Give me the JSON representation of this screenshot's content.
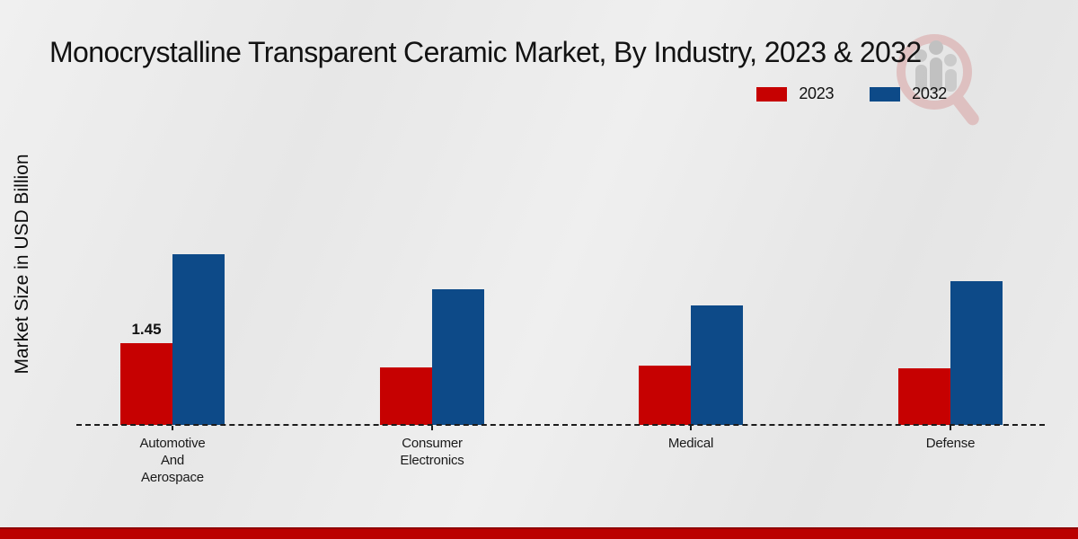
{
  "title": "Monocrystalline Transparent Ceramic Market, By Industry, 2023 & 2032",
  "y_axis_label": "Market Size in USD Billion",
  "legend": {
    "position": "top-right",
    "items": [
      {
        "label": "2023",
        "color": "#c60101"
      },
      {
        "label": "2032",
        "color": "#0d4a88"
      }
    ]
  },
  "colors": {
    "bar_2023": "#c60101",
    "bar_2032": "#0d4a88",
    "footer_bar": "#bb0000",
    "footer_bar_edge": "#8e0000",
    "axis_line": "#1c1c1c",
    "background": "#ebebeb"
  },
  "chart_data": {
    "type": "bar",
    "categories": [
      "Automotive And Aerospace",
      "Consumer Electronics",
      "Medical",
      "Defense"
    ],
    "series": [
      {
        "name": "2023",
        "color": "#c60101",
        "values": [
          1.45,
          1.02,
          1.05,
          1.01
        ]
      },
      {
        "name": "2032",
        "color": "#0d4a88",
        "values": [
          3.02,
          2.41,
          2.11,
          2.55
        ]
      }
    ],
    "bar_value_labels": [
      {
        "series": "2023",
        "category": "Automotive And Aerospace",
        "text": "1.45"
      }
    ],
    "title": "Monocrystalline Transparent Ceramic Market, By Industry, 2023 & 2032",
    "xlabel": "",
    "ylabel": "Market Size in USD Billion",
    "ylim": [
      0,
      3.5
    ],
    "grid": false,
    "legend_position": "top-right",
    "baseline_style": "dashed",
    "y_tick_labels_visible": false
  },
  "watermark": {
    "name": "market-research-future-logo"
  }
}
